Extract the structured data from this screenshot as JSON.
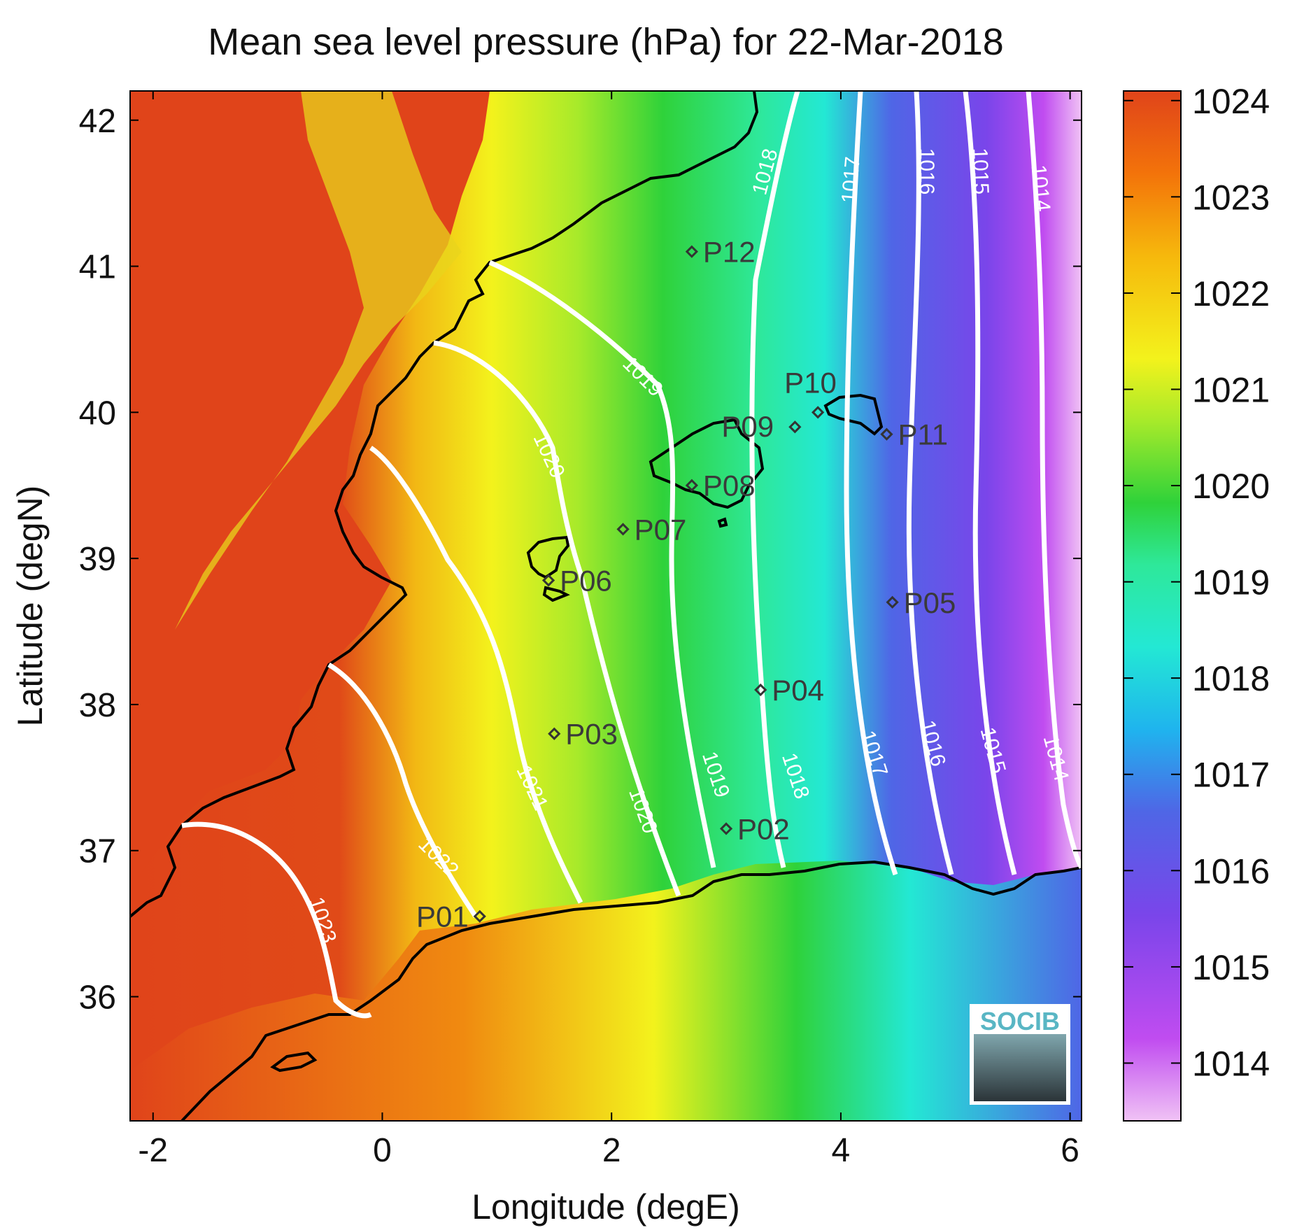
{
  "title": "Mean sea level pressure (hPa) for 22-Mar-2018",
  "xlabel": "Longitude (degE)",
  "ylabel": "Latitude (degN)",
  "x_ticks": [
    "-2",
    "0",
    "2",
    "4",
    "6"
  ],
  "y_ticks": [
    "36",
    "37",
    "38",
    "39",
    "40",
    "41",
    "42"
  ],
  "colorbar": {
    "ticks": [
      "1014",
      "1015",
      "1016",
      "1017",
      "1018",
      "1019",
      "1020",
      "1021",
      "1022",
      "1023",
      "1024"
    ],
    "colors": [
      "#f0c2f5",
      "#c04cf0",
      "#7a45ea",
      "#4f66e6",
      "#1fb4ee",
      "#23e8d4",
      "#2ee89a",
      "#2fd23a",
      "#a8ea2a",
      "#f3f21c",
      "#f6b80c",
      "#f3730a",
      "#e0441a"
    ]
  },
  "logo": {
    "text": "SOCIB"
  },
  "contour_labels": [
    "1014",
    "1015",
    "1016",
    "1017",
    "1018",
    "1019",
    "1020",
    "1021",
    "1022",
    "1023"
  ],
  "chart_data": {
    "type": "heatmap",
    "title": "Mean sea level pressure (hPa) for 22-Mar-2018",
    "xlabel": "Longitude (degE)",
    "ylabel": "Latitude (degN)",
    "xlim": [
      -2.2,
      6.1
    ],
    "ylim": [
      35.15,
      42.2
    ],
    "clim": [
      1013.4,
      1024.1
    ],
    "isobars": [
      1014,
      1015,
      1016,
      1017,
      1018,
      1019,
      1020,
      1021,
      1022,
      1023
    ],
    "stations": [
      {
        "name": "P01",
        "lon": 0.85,
        "lat": 36.55
      },
      {
        "name": "P02",
        "lon": 3.0,
        "lat": 37.15
      },
      {
        "name": "P03",
        "lon": 1.5,
        "lat": 37.8
      },
      {
        "name": "P04",
        "lon": 3.3,
        "lat": 38.1
      },
      {
        "name": "P05",
        "lon": 4.45,
        "lat": 38.7
      },
      {
        "name": "P06",
        "lon": 1.45,
        "lat": 38.85
      },
      {
        "name": "P07",
        "lon": 2.1,
        "lat": 39.2
      },
      {
        "name": "P08",
        "lon": 2.7,
        "lat": 39.5
      },
      {
        "name": "P09",
        "lon": 3.6,
        "lat": 39.9
      },
      {
        "name": "P10",
        "lon": 3.8,
        "lat": 40.0
      },
      {
        "name": "P11",
        "lon": 4.4,
        "lat": 39.85
      },
      {
        "name": "P12",
        "lon": 2.7,
        "lat": 41.1
      }
    ]
  }
}
